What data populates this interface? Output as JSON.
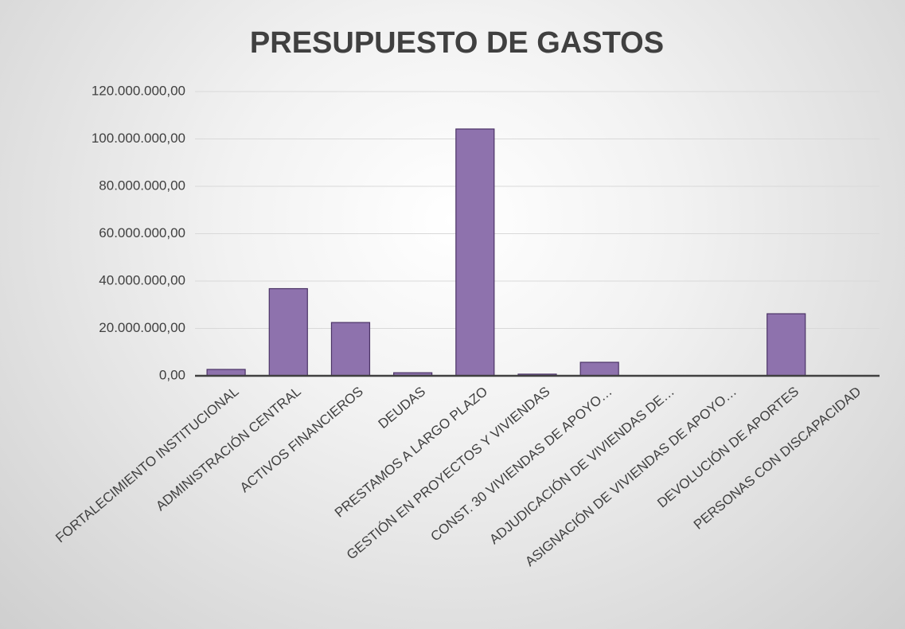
{
  "chart_data": {
    "type": "bar",
    "title": "PRESUPUESTO DE GASTOS",
    "categories": [
      "FORTALECIMIENTO INSTITUCIONAL",
      "ADMINISTRACIÓN CENTRAL",
      "ACTIVOS FINANCIEROS",
      "DEUDAS",
      "PRESTAMOS A LARGO PLAZO",
      "GESTIÓN EN PROYECTOS Y VIVIENDAS",
      "CONST. 30 VIVIENDAS DE APOYO…",
      "ADJUDICACIÓN DE VIVIENDAS DE…",
      "ASIGNACIÓN DE VIVIENDAS DE APOYO…",
      "DEVOLUCIÓN DE APORTES",
      "PERSONAS CON DISCAPACIDAD"
    ],
    "values": [
      2700000,
      36800000,
      22500000,
      1300000,
      104200000,
      700000,
      5700000,
      0,
      0,
      26200000,
      0
    ],
    "color": "#8e72ad",
    "ylim": [
      0,
      120000000
    ],
    "yticks": [
      {
        "value": 0,
        "label": "0,00"
      },
      {
        "value": 20000000,
        "label": "20.000.000,00"
      },
      {
        "value": 40000000,
        "label": "40.000.000,00"
      },
      {
        "value": 60000000,
        "label": "60.000.000,00"
      },
      {
        "value": 80000000,
        "label": "80.000.000,00"
      },
      {
        "value": 100000000,
        "label": "100.000.000,00"
      },
      {
        "value": 120000000,
        "label": "120.000.000,00"
      }
    ],
    "grid": true
  }
}
